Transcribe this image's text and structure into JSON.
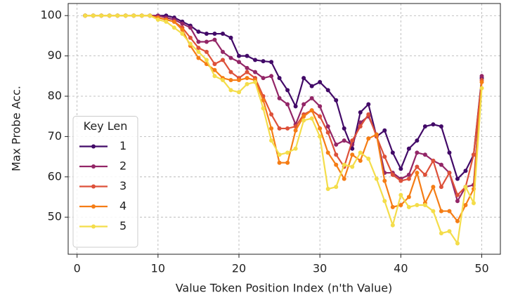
{
  "chart_data": {
    "type": "line",
    "xlabel": "Value Token Position Index (n'th Value)",
    "ylabel": "Max Probe Acc.",
    "x": [
      1,
      2,
      3,
      4,
      5,
      6,
      7,
      8,
      9,
      10,
      11,
      12,
      13,
      14,
      15,
      16,
      17,
      18,
      19,
      20,
      21,
      22,
      23,
      24,
      25,
      26,
      27,
      28,
      29,
      30,
      31,
      32,
      33,
      34,
      35,
      36,
      37,
      38,
      39,
      40,
      41,
      42,
      43,
      44,
      45,
      46,
      47,
      48,
      49,
      50
    ],
    "series": [
      {
        "name": "1",
        "color": "#420a68",
        "values": [
          100,
          100,
          100,
          100,
          100,
          100,
          100,
          100,
          100,
          100,
          100,
          99.5,
          98.5,
          97.5,
          96,
          95.5,
          95.5,
          95.5,
          94.5,
          90,
          90,
          89,
          88.7,
          88.5,
          84.5,
          81.5,
          77.5,
          84.5,
          82.5,
          83.5,
          81.5,
          79,
          72,
          67,
          76,
          78,
          70,
          71.5,
          66,
          62,
          67,
          69,
          72.5,
          73,
          72.5,
          66,
          59.5,
          61.5,
          65.5,
          84.5
        ]
      },
      {
        "name": "2",
        "color": "#932667",
        "values": [
          100,
          100,
          100,
          100,
          100,
          100,
          100,
          100,
          100,
          100,
          99.5,
          99,
          98,
          97,
          93.5,
          93.5,
          94,
          91,
          89.5,
          88.5,
          87,
          86,
          84.5,
          85,
          79.5,
          78,
          73,
          78,
          79.5,
          77.5,
          72.5,
          68,
          69,
          68,
          73.5,
          75,
          70.5,
          61,
          61,
          59.5,
          60.5,
          66,
          65.5,
          64,
          63,
          61,
          54,
          57.5,
          58,
          85
        ]
      },
      {
        "name": "3",
        "color": "#dd513a",
        "values": [
          100,
          100,
          100,
          100,
          100,
          100,
          100,
          100,
          100,
          99.5,
          99,
          98.5,
          97,
          94.5,
          92,
          91,
          88,
          89,
          86,
          84.5,
          86,
          84.5,
          80,
          75.5,
          72,
          72,
          72.5,
          75.5,
          76.5,
          75,
          71,
          65.5,
          62.5,
          69,
          72.5,
          75.5,
          70,
          65,
          60.5,
          59,
          59.5,
          62.5,
          60.5,
          64,
          57.5,
          61,
          55.5,
          57.5,
          65.5,
          84
        ]
      },
      {
        "name": "4",
        "color": "#f57d15",
        "values": [
          100,
          100,
          100,
          100,
          100,
          100,
          100,
          100,
          100,
          99.5,
          99,
          98.5,
          96.5,
          92.5,
          89.5,
          88,
          86.5,
          84.5,
          84,
          84,
          84.5,
          84,
          79,
          72,
          63.5,
          63.5,
          71.5,
          75,
          76.5,
          72,
          66,
          63,
          59.5,
          65.5,
          64,
          69.5,
          70.5,
          59,
          52.5,
          53,
          55,
          61,
          53.5,
          57.5,
          51.5,
          51.5,
          49,
          53,
          57,
          83.5
        ]
      },
      {
        "name": "5",
        "color": "#f4dd4a",
        "values": [
          100,
          100,
          100,
          100,
          100,
          100,
          100,
          100,
          100,
          99,
          98.5,
          97,
          95.5,
          93,
          91,
          89,
          85,
          84,
          81.5,
          81,
          83,
          83.5,
          77,
          69,
          65.5,
          66,
          67,
          74,
          74.5,
          70,
          57,
          57.5,
          63,
          62.5,
          66,
          64.5,
          59.5,
          54,
          48,
          55.5,
          52.5,
          53,
          53,
          51.5,
          46,
          46.5,
          43.5,
          57.5,
          53.5,
          82
        ]
      }
    ],
    "xlim": [
      -1.1,
      52.3
    ],
    "ylim": [
      40.8,
      103
    ],
    "xticks": [
      0,
      10,
      20,
      30,
      40,
      50
    ],
    "yticks": [
      50,
      60,
      70,
      80,
      90,
      100
    ],
    "grid": true,
    "legend_title": "Key Len",
    "legend_loc": "lower left"
  }
}
